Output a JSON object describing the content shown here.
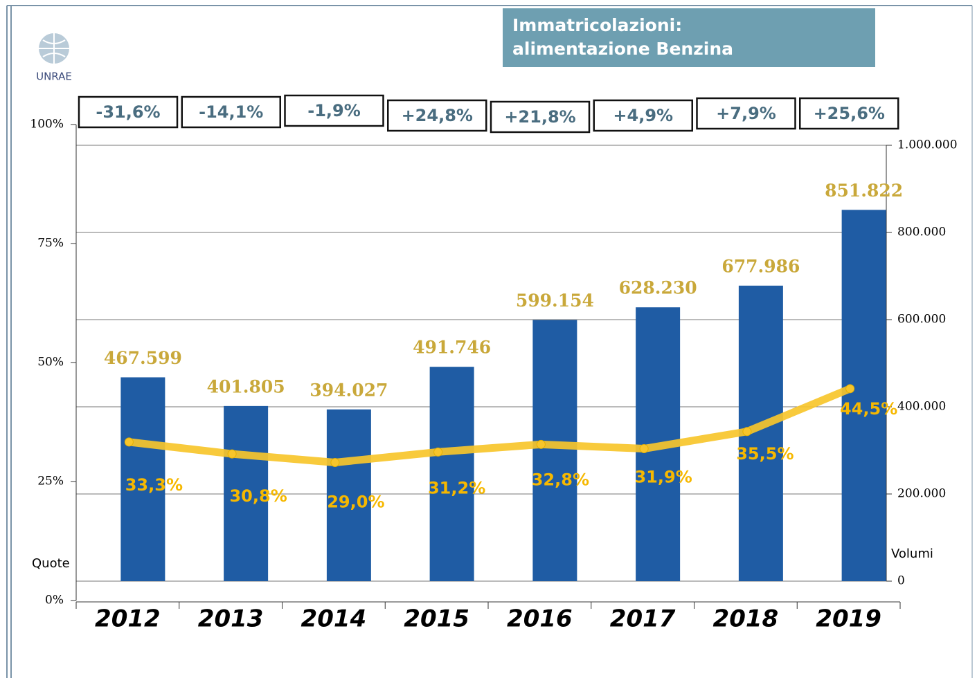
{
  "chart_data": {
    "type": "bar",
    "title": [
      "Immatricolazioni:",
      "alimentazione Benzina"
    ],
    "logo": "UNRAE",
    "ylabel": "Quote",
    "y2label": "Volumi",
    "categories": [
      "2012",
      "2013",
      "2014",
      "2015",
      "2016",
      "2017",
      "2018",
      "2019"
    ],
    "annotations": [
      "-31,6%",
      "-14,1%",
      "-1,9%",
      "+24,8%",
      "+21,8%",
      "+4,9%",
      "+7,9%",
      "+25,6%"
    ],
    "series": [
      {
        "type": "bar",
        "axis": "y2",
        "color": "#1f5ca4",
        "values": [
          467599,
          401805,
          394027,
          491746,
          599154,
          628230,
          677986,
          851822
        ],
        "value_labels": [
          "467.599",
          "401.805",
          "394.027",
          "491.746",
          "599.154",
          "628.230",
          "677.986",
          "851.822"
        ]
      },
      {
        "type": "line",
        "axis": "y",
        "color": "#f7c52b",
        "values": [
          33.3,
          30.8,
          29.0,
          31.2,
          32.8,
          31.9,
          35.5,
          44.5
        ],
        "value_labels": [
          "33,3%",
          "30,8%",
          "29,0%",
          "31,2%",
          "32,8%",
          "31,9%",
          "35,5%",
          "44,5%"
        ]
      }
    ],
    "ylim": [
      0,
      100
    ],
    "yticks": [
      {
        "value": 0,
        "label": "0%"
      },
      {
        "value": 25,
        "label": "25%"
      },
      {
        "value": 50,
        "label": "50%"
      },
      {
        "value": 75,
        "label": "75%"
      },
      {
        "value": 100,
        "label": "100%"
      }
    ],
    "y2lim": [
      0,
      1000000
    ],
    "y2ticks": [
      0,
      {
        "value": 200000,
        "label": "200.000"
      },
      {
        "value": 400000,
        "label": "400.000"
      },
      {
        "value": 600000,
        "label": "600.000"
      },
      {
        "value": 800000,
        "label": "800.000"
      },
      {
        "value": 1000000,
        "label": "1.000.000"
      }
    ],
    "grid": true
  }
}
